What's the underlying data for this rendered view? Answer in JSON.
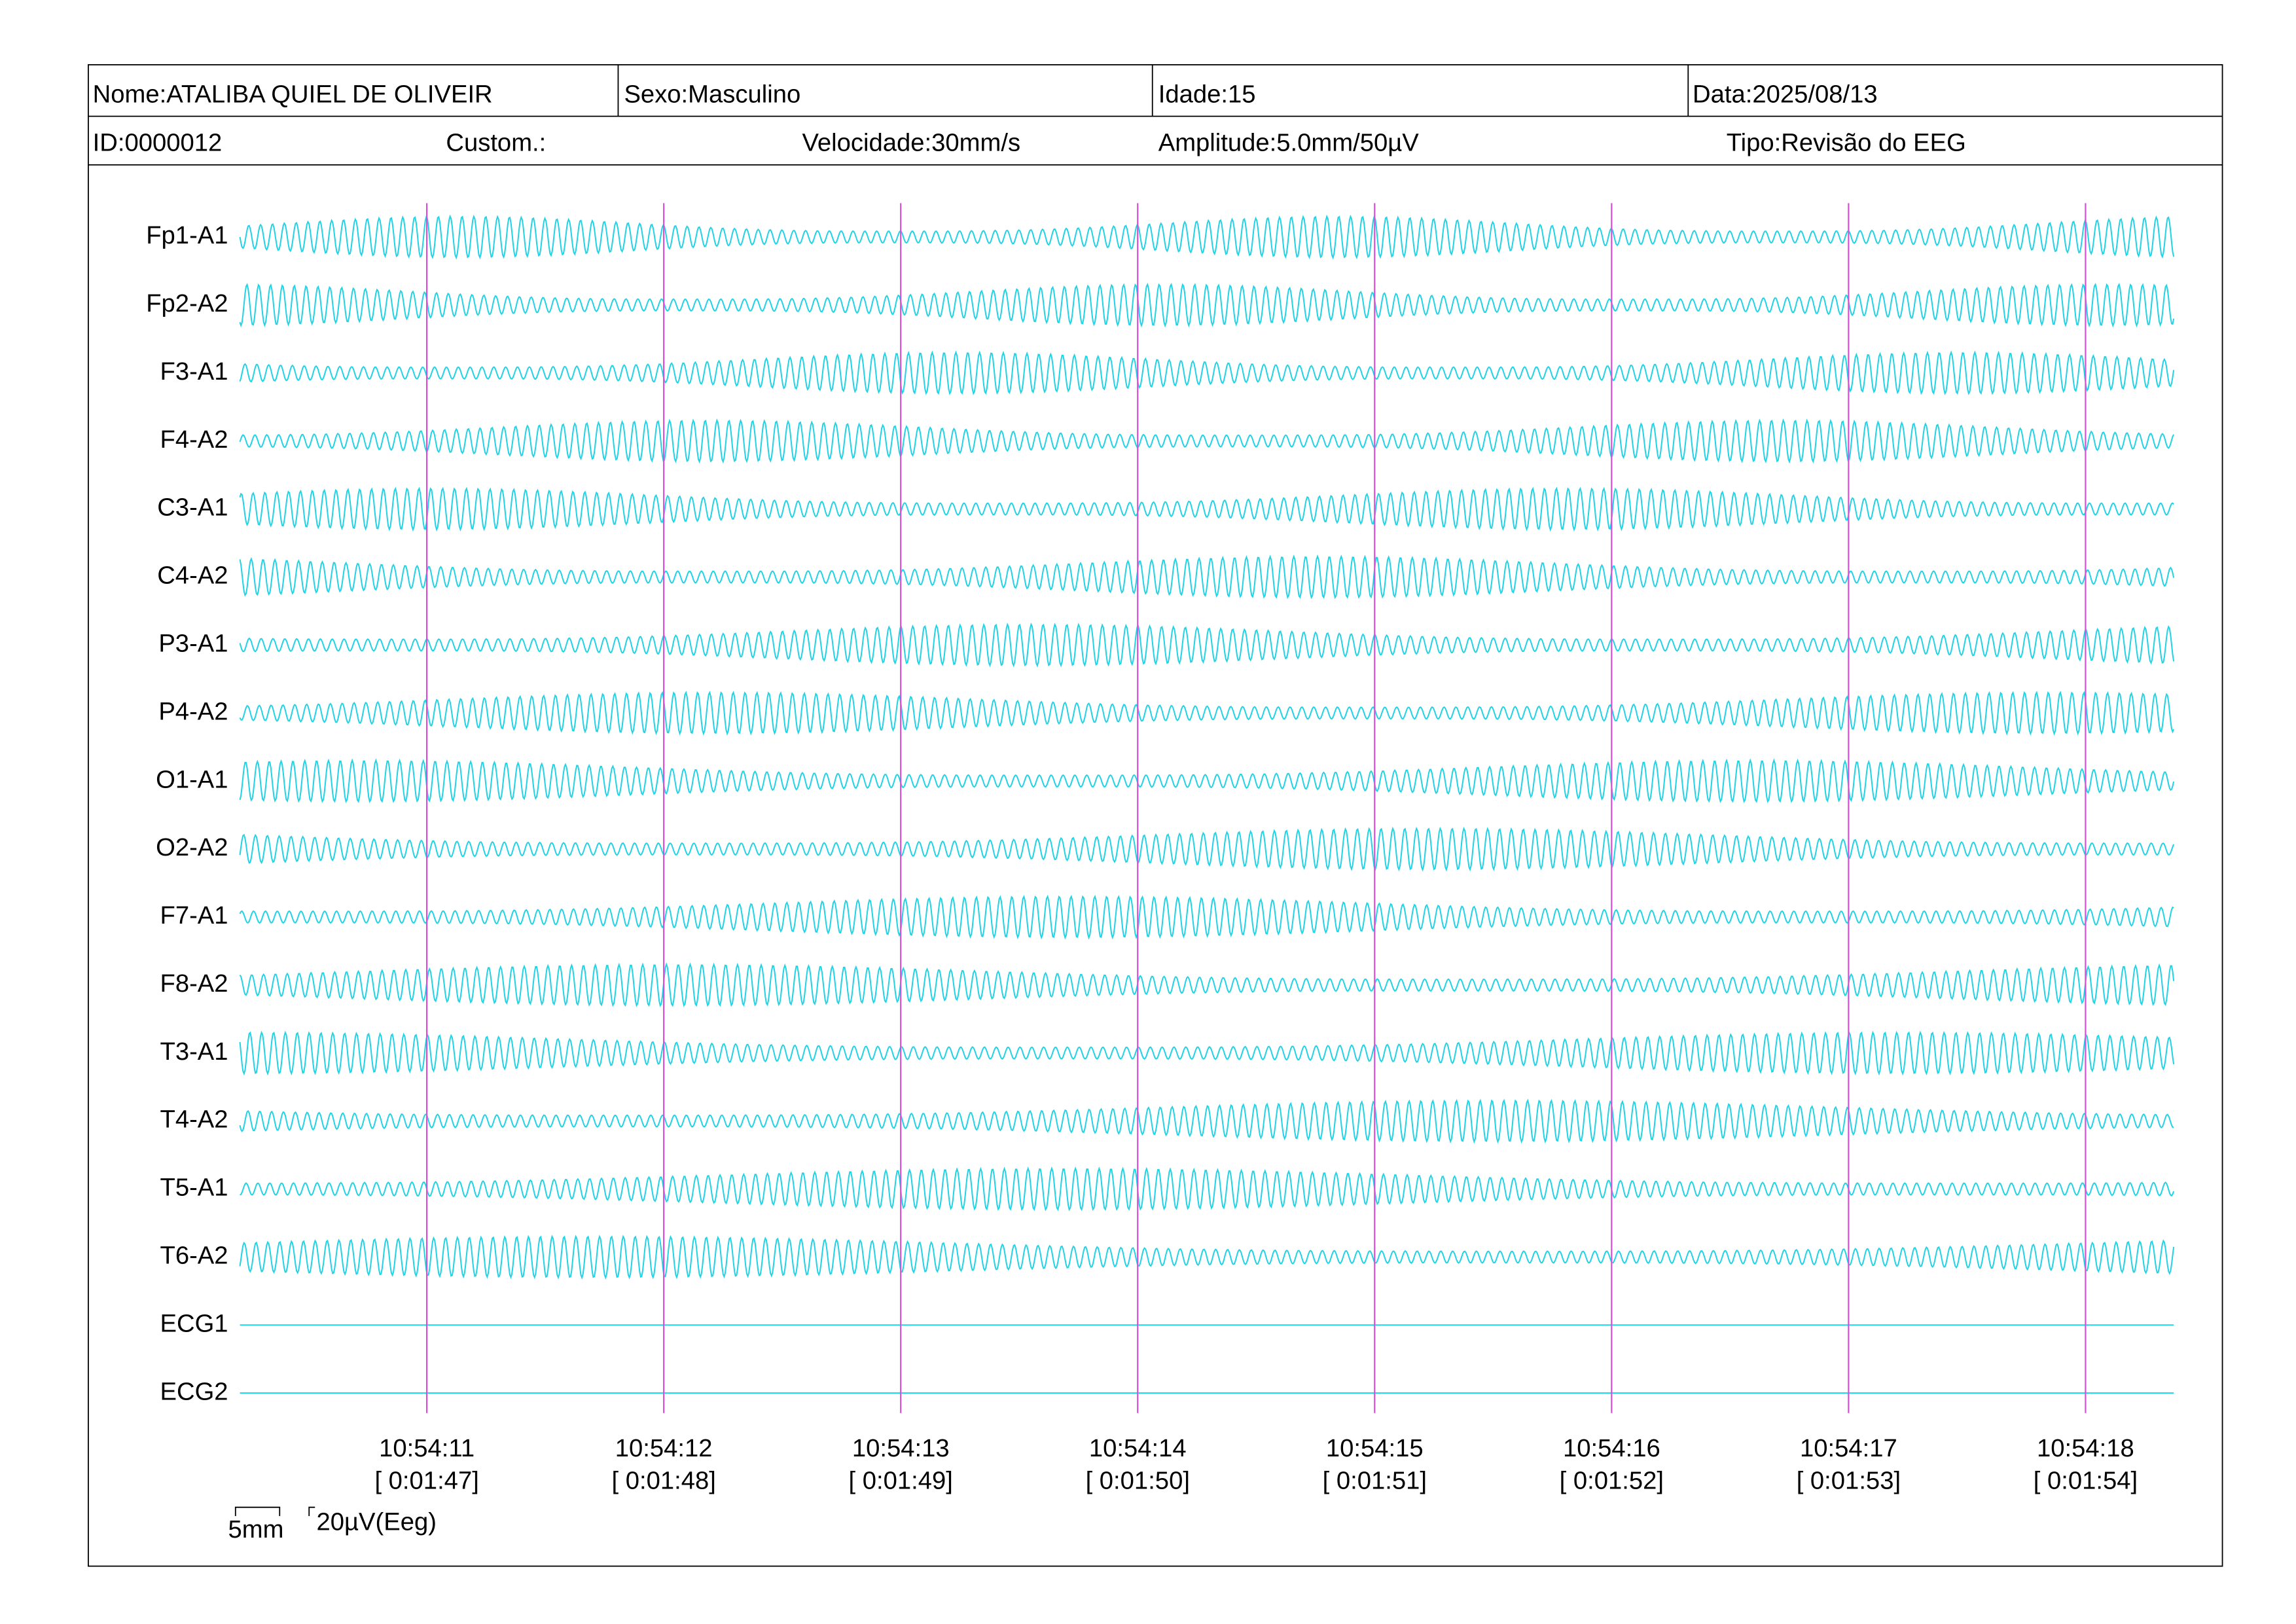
{
  "header": {
    "name": "Nome:ATALIBA QUIEL DE OLIVEIR",
    "sex": "Sexo:Masculino",
    "age": "Idade:15",
    "date": "Data:2025/08/13",
    "id": "ID:0000012",
    "custom": "Custom.:",
    "speed": "Velocidade:30mm/s",
    "amplitude": "Amplitude:5.0mm/50µV",
    "type": "Tipo:Revisão do EEG"
  },
  "channels": [
    "Fp1-A1",
    "Fp2-A2",
    "F3-A1",
    "F4-A2",
    "C3-A1",
    "C4-A2",
    "P3-A1",
    "P4-A2",
    "O1-A1",
    "O2-A2",
    "F7-A1",
    "F8-A2",
    "T3-A1",
    "T4-A2",
    "T5-A1",
    "T6-A2",
    "ECG1",
    "ECG2"
  ],
  "time_marks": [
    {
      "time": "10:54:11",
      "elapsed": "[ 0:01:47]"
    },
    {
      "time": "10:54:12",
      "elapsed": "[ 0:01:48]"
    },
    {
      "time": "10:54:13",
      "elapsed": "[ 0:01:49]"
    },
    {
      "time": "10:54:14",
      "elapsed": "[ 0:01:50]"
    },
    {
      "time": "10:54:15",
      "elapsed": "[ 0:01:51]"
    },
    {
      "time": "10:54:16",
      "elapsed": "[ 0:01:52]"
    },
    {
      "time": "10:54:17",
      "elapsed": "[ 0:01:53]"
    },
    {
      "time": "10:54:18",
      "elapsed": "[ 0:01:54]"
    }
  ],
  "scale": {
    "time": "5mm",
    "amplitude": "20µV(Eeg)"
  }
}
